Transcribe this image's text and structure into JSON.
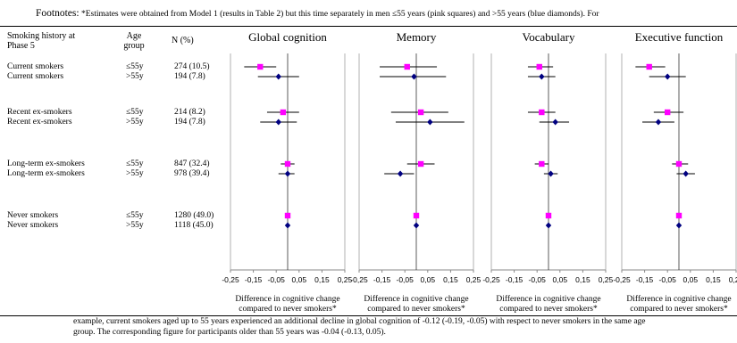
{
  "footnote_top": {
    "label": "Footnotes:",
    "text": "*Estimates were obtained from Model 1 (results in Table 2) but this time separately in men ≤55 years (pink squares) and >55 years (blue diamonds). For"
  },
  "footnote_bottom": [
    "example, current smokers aged up to 55 years experienced an additional decline in global cognition of -0.12 (-0.19, -0.05) with respect to never smokers in the same age",
    "group. The corresponding figure for participants older than 55 years was -0.04 (-0.13, 0.05)."
  ],
  "headers": {
    "smoking": [
      "Smoking history at",
      "Phase 5"
    ],
    "age": [
      "Age",
      "group"
    ],
    "n": "N (%)"
  },
  "rows": [
    {
      "smoking": "Current smokers",
      "age": "≤55y",
      "n": "274 (10.5)"
    },
    {
      "smoking": "Current smokers",
      "age": ">55y",
      "n": "194 (7.8)"
    },
    {
      "smoking": "Recent ex-smokers",
      "age": "≤55y",
      "n": "214 (8.2)"
    },
    {
      "smoking": "Recent ex-smokers",
      "age": ">55y",
      "n": "194 (7.8)"
    },
    {
      "smoking": "Long-term ex-smokers",
      "age": "≤55y",
      "n": "847 (32.4)"
    },
    {
      "smoking": "Long-term ex-smokers",
      "age": ">55y",
      "n": "978 (39.4)"
    },
    {
      "smoking": "Never smokers",
      "age": "≤55y",
      "n": "1280 (49.0)"
    },
    {
      "smoking": "Never smokers",
      "age": ">55y",
      "n": "1118 (45.0)"
    }
  ],
  "colors": {
    "young": "#ff00ff",
    "old": "#000080"
  },
  "chart_data": {
    "type": "forest",
    "xlim": [
      -0.25,
      0.25
    ],
    "xticks": [
      "-0,25",
      "-0,15",
      "-0,05",
      "0,05",
      "0,15",
      "0,25"
    ],
    "xlabel": [
      "Difference in cognitive change",
      "compared to never smokers*"
    ],
    "panels": [
      {
        "title": "Global cognition",
        "points": [
          {
            "est": -0.12,
            "lo": -0.19,
            "hi": -0.05
          },
          {
            "est": -0.04,
            "lo": -0.13,
            "hi": 0.05
          },
          {
            "est": -0.02,
            "lo": -0.09,
            "hi": 0.05
          },
          {
            "est": -0.04,
            "lo": -0.12,
            "hi": 0.04
          },
          {
            "est": 0.0,
            "lo": -0.03,
            "hi": 0.03
          },
          {
            "est": 0.0,
            "lo": -0.04,
            "hi": 0.03
          },
          {
            "est": 0.0,
            "lo": 0.0,
            "hi": 0.0
          },
          {
            "est": 0.0,
            "lo": 0.0,
            "hi": 0.0
          }
        ]
      },
      {
        "title": "Memory",
        "points": [
          {
            "est": -0.04,
            "lo": -0.16,
            "hi": 0.09
          },
          {
            "est": -0.01,
            "lo": -0.16,
            "hi": 0.13
          },
          {
            "est": 0.02,
            "lo": -0.11,
            "hi": 0.14
          },
          {
            "est": 0.06,
            "lo": -0.09,
            "hi": 0.21
          },
          {
            "est": 0.02,
            "lo": -0.04,
            "hi": 0.08
          },
          {
            "est": -0.07,
            "lo": -0.14,
            "hi": -0.01
          },
          {
            "est": 0.0,
            "lo": 0.0,
            "hi": 0.0
          },
          {
            "est": 0.0,
            "lo": 0.0,
            "hi": 0.0
          }
        ]
      },
      {
        "title": "Vocabulary",
        "points": [
          {
            "est": -0.04,
            "lo": -0.09,
            "hi": 0.02
          },
          {
            "est": -0.03,
            "lo": -0.09,
            "hi": 0.03
          },
          {
            "est": -0.03,
            "lo": -0.09,
            "hi": 0.03
          },
          {
            "est": 0.03,
            "lo": -0.04,
            "hi": 0.09
          },
          {
            "est": -0.03,
            "lo": -0.06,
            "hi": 0.0
          },
          {
            "est": 0.01,
            "lo": -0.02,
            "hi": 0.04
          },
          {
            "est": 0.0,
            "lo": 0.0,
            "hi": 0.0
          },
          {
            "est": 0.0,
            "lo": 0.0,
            "hi": 0.0
          }
        ]
      },
      {
        "title": "Executive function",
        "points": [
          {
            "est": -0.13,
            "lo": -0.19,
            "hi": -0.06
          },
          {
            "est": -0.05,
            "lo": -0.13,
            "hi": 0.03
          },
          {
            "est": -0.05,
            "lo": -0.11,
            "hi": 0.02
          },
          {
            "est": -0.09,
            "lo": -0.16,
            "hi": -0.02
          },
          {
            "est": 0.0,
            "lo": -0.03,
            "hi": 0.04
          },
          {
            "est": 0.03,
            "lo": -0.01,
            "hi": 0.07
          },
          {
            "est": 0.0,
            "lo": 0.0,
            "hi": 0.0
          },
          {
            "est": 0.0,
            "lo": 0.0,
            "hi": 0.0
          }
        ]
      }
    ]
  }
}
